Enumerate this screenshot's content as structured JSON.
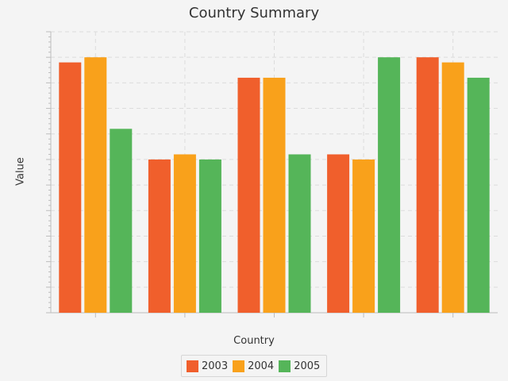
{
  "chart_data": {
    "type": "bar",
    "title": "Country Summary",
    "xlabel": "Country",
    "ylabel": "Value",
    "categories": [
      "",
      "",
      "",
      "",
      ""
    ],
    "ylim": [
      0,
      110
    ],
    "grid": true,
    "legend_position": "bottom",
    "series": [
      {
        "name": "2003",
        "color": "#f05f2c",
        "values": [
          98,
          60,
          92,
          62,
          100
        ]
      },
      {
        "name": "2004",
        "color": "#f9a11b",
        "values": [
          100,
          62,
          92,
          60,
          98
        ]
      },
      {
        "name": "2005",
        "color": "#55b559",
        "values": [
          72,
          60,
          62,
          100,
          92
        ]
      }
    ]
  }
}
